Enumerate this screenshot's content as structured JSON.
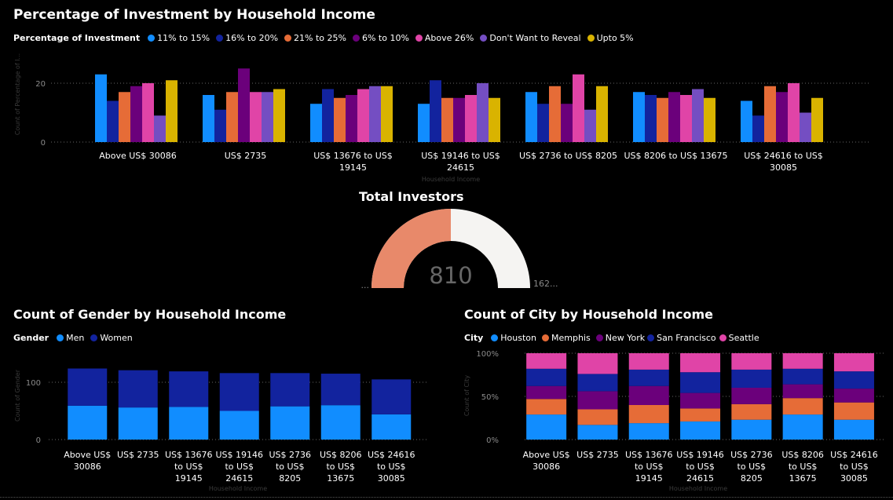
{
  "colors": {
    "11% to 15%": "#118dff",
    "16% to 20%": "#12239e",
    "21% to 25%": "#e66c37",
    "6% to 10%": "#6b007b",
    "Above 26%": "#e044a7",
    "Don't Want to Reveal": "#744ec2",
    "Upto 5%": "#d9b300",
    "Men": "#118dff",
    "Women": "#12239e",
    "Houston": "#118dff",
    "Memphis": "#e66c37",
    "New York": "#6b007b",
    "San Francisco": "#12239e",
    "Seattle": "#e044a7",
    "gauge_fill": "#e8896a",
    "gauge_bg": "#f5f4f2"
  },
  "chart_data": [
    {
      "id": "investment",
      "type": "bar",
      "title": "Percentage of Investment by Household Income",
      "legend_title": "Percentage of Investment",
      "xlabel": "Household Income",
      "ylabel": "Count of Percentage of I...",
      "ylim": [
        0,
        27
      ],
      "yticks": [
        0,
        20
      ],
      "grid": true,
      "legend_position": "top-left",
      "categories": [
        "Above US$ 30086",
        "US$ 2735",
        "US$ 13676 to US$ 19145",
        "US$ 19146 to US$ 24615",
        "US$ 2736 to US$ 8205",
        "US$ 8206 to US$ 13675",
        "US$ 24616 to US$ 30085"
      ],
      "category_labels": [
        [
          "Above US$ 30086"
        ],
        [
          "US$ 2735"
        ],
        [
          "US$ 13676 to US$",
          "19145"
        ],
        [
          "US$ 19146 to US$",
          "24615"
        ],
        [
          "US$ 2736 to US$ 8205"
        ],
        [
          "US$ 8206 to US$ 13675"
        ],
        [
          "US$ 24616 to US$",
          "30085"
        ]
      ],
      "series": [
        {
          "name": "11% to 15%",
          "values": [
            23,
            16,
            13,
            13,
            17,
            17,
            14
          ]
        },
        {
          "name": "16% to 20%",
          "values": [
            14,
            11,
            18,
            21,
            13,
            16,
            9
          ]
        },
        {
          "name": "21% to 25%",
          "values": [
            17,
            17,
            15,
            15,
            19,
            15,
            19
          ]
        },
        {
          "name": "6% to 10%",
          "values": [
            19,
            25,
            16,
            15,
            13,
            17,
            17
          ]
        },
        {
          "name": "Above 26%",
          "values": [
            20,
            17,
            18,
            16,
            23,
            16,
            20
          ]
        },
        {
          "name": "Don't Want to Reveal",
          "values": [
            9,
            17,
            19,
            20,
            11,
            18,
            10
          ]
        },
        {
          "name": "Upto 5%",
          "values": [
            21,
            18,
            19,
            15,
            19,
            15,
            15
          ]
        }
      ]
    },
    {
      "id": "gauge",
      "type": "gauge",
      "title": "Total Investors",
      "value": 810,
      "value_label": "810",
      "min_label": "...",
      "max_label": "162...",
      "fraction": 0.5
    },
    {
      "id": "gender",
      "type": "bar",
      "stacked": true,
      "title": "Count of Gender by Household Income",
      "legend_title": "Gender",
      "xlabel": "Household Income",
      "ylabel": "Count of Gender",
      "ylim": [
        0,
        135
      ],
      "yticks": [
        0,
        100
      ],
      "grid": true,
      "legend_position": "top-left",
      "categories": [
        "Above US$ 30086",
        "US$ 2735",
        "US$ 13676 to US$ 19145",
        "US$ 19146 to US$ 24615",
        "US$ 2736 to US$ 8205",
        "US$ 8206 to US$ 13675",
        "US$ 24616 to US$ 30085"
      ],
      "category_labels": [
        [
          "Above US$",
          "30086"
        ],
        [
          "US$ 2735"
        ],
        [
          "US$ 13676",
          "to US$",
          "19145"
        ],
        [
          "US$ 19146",
          "to US$",
          "24615"
        ],
        [
          "US$ 2736",
          "to US$",
          "8205"
        ],
        [
          "US$ 8206",
          "to US$",
          "13675"
        ],
        [
          "US$ 24616",
          "to US$",
          "30085"
        ]
      ],
      "series": [
        {
          "name": "Men",
          "values": [
            59,
            56,
            57,
            50,
            58,
            60,
            44
          ]
        },
        {
          "name": "Women",
          "values": [
            65,
            65,
            62,
            66,
            58,
            55,
            61
          ]
        }
      ]
    },
    {
      "id": "city",
      "type": "bar",
      "stacked": true,
      "percent": true,
      "title": "Count of City by Household Income",
      "legend_title": "City",
      "xlabel": "Household Income",
      "ylabel": "Count of City",
      "ylim": [
        0,
        100
      ],
      "yticks": [
        0,
        50,
        100
      ],
      "ytick_labels": [
        "0%",
        "50%",
        "100%"
      ],
      "grid": true,
      "legend_position": "top-left",
      "categories": [
        "Above US$ 30086",
        "US$ 2735",
        "US$ 13676 to US$ 19145",
        "US$ 19146 to US$ 24615",
        "US$ 2736 to US$ 8205",
        "US$ 8206 to US$ 13675",
        "US$ 24616 to US$ 30085"
      ],
      "category_labels": [
        [
          "Above US$",
          "30086"
        ],
        [
          "US$ 2735"
        ],
        [
          "US$ 13676",
          "to US$",
          "19145"
        ],
        [
          "US$ 19146",
          "to US$",
          "24615"
        ],
        [
          "US$ 2736",
          "to US$",
          "8205"
        ],
        [
          "US$ 8206",
          "to US$",
          "13675"
        ],
        [
          "US$ 24616",
          "to US$",
          "30085"
        ]
      ],
      "series": [
        {
          "name": "Houston",
          "values": [
            29,
            17,
            19,
            21,
            23,
            29,
            23
          ]
        },
        {
          "name": "Memphis",
          "values": [
            18,
            18,
            21,
            15,
            18,
            19,
            20
          ]
        },
        {
          "name": "New York",
          "values": [
            15,
            21,
            22,
            18,
            19,
            16,
            16
          ]
        },
        {
          "name": "San Francisco",
          "values": [
            20,
            20,
            19,
            24,
            21,
            18,
            20
          ]
        },
        {
          "name": "Seattle",
          "values": [
            18,
            24,
            19,
            22,
            19,
            18,
            21
          ]
        }
      ]
    }
  ]
}
